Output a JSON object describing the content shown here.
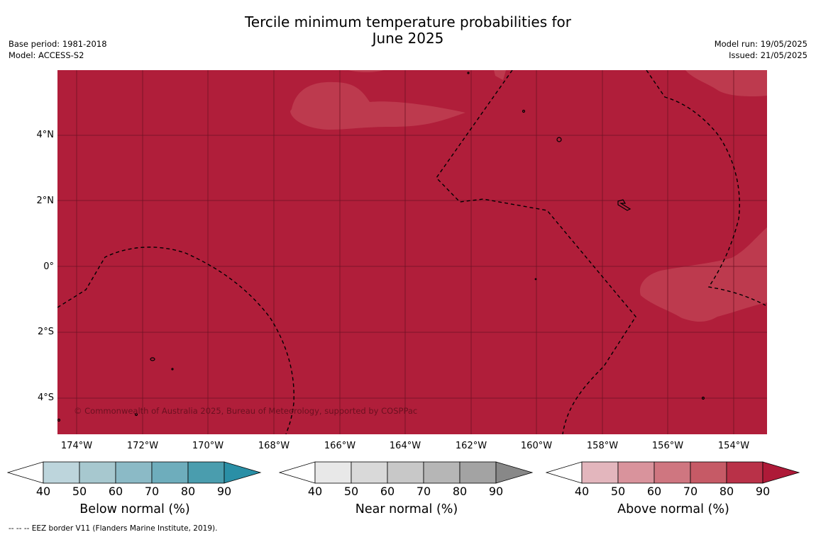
{
  "title_line1": "Tercile minimum temperature probabilities for",
  "title_line2": "June 2025",
  "meta_left": [
    "Base period: 1981-2018",
    "Model: ACCESS-S2"
  ],
  "meta_right": [
    "Model run: 19/05/2025",
    "Issued: 21/05/2025"
  ],
  "latitude_labels": [
    "4°N",
    "2°N",
    "0°",
    "2°S",
    "4°S"
  ],
  "longitude_labels": [
    "174°W",
    "172°W",
    "170°W",
    "168°W",
    "166°W",
    "164°W",
    "162°W",
    "160°W",
    "158°W",
    "156°W",
    "154°W"
  ],
  "copyright": "© Commonwealth of Australia 2025, Bureau of Meteorology, supported by COSPPac",
  "footnote": "--  --  -- EEZ border V11 (Flanders Marine Institute, 2019).",
  "colors": {
    "above_dominant": "#b01e3a",
    "above_lighter": "#bd3a4e",
    "border": "#000000"
  },
  "colorbars": [
    {
      "title": "Below normal (%)",
      "ticks": [
        "40",
        "50",
        "60",
        "70",
        "80",
        "90"
      ],
      "colors": [
        "#ffffff",
        "#bdd5dc",
        "#a7c8cf",
        "#8bbac6",
        "#6eadbc",
        "#4a9dae",
        "#2a8fa6"
      ]
    },
    {
      "title": "Near normal (%)",
      "ticks": [
        "40",
        "50",
        "60",
        "70",
        "80",
        "90"
      ],
      "colors": [
        "#ffffff",
        "#e8e8e8",
        "#d9d9d9",
        "#c8c8c8",
        "#b6b6b6",
        "#a3a3a3",
        "#888888"
      ]
    },
    {
      "title": "Above normal (%)",
      "ticks": [
        "40",
        "50",
        "60",
        "70",
        "80",
        "90"
      ],
      "colors": [
        "#ffffff",
        "#e3b6bd",
        "#d9939c",
        "#cf7680",
        "#c65a66",
        "#b93148",
        "#ae1a38"
      ]
    }
  ]
}
